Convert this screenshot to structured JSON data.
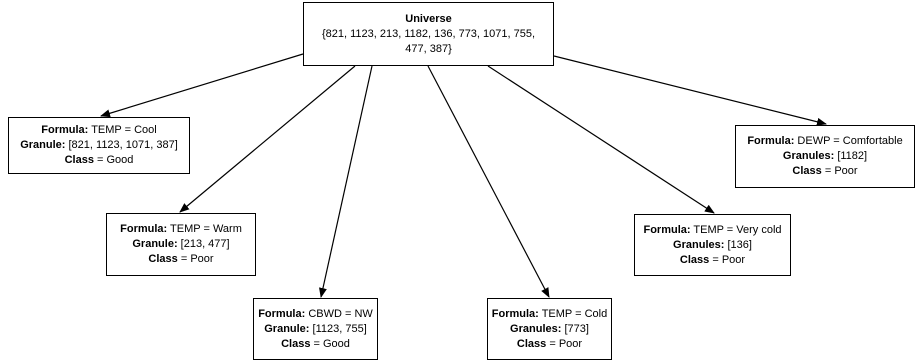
{
  "root": {
    "title": "Universe",
    "set_line1": "{821, 1123, 213, 1182, 136, 773, 1071, 755,",
    "set_line2": "477, 387}"
  },
  "nodes": [
    {
      "formula_key": "Formula:",
      "formula_val": " TEMP = Cool",
      "granule_key": "Granule:",
      "granule_val": " [821, 1123, 1071, 387]",
      "class_key": "Class",
      "class_val": " = Good"
    },
    {
      "formula_key": "Formula:",
      "formula_val": " TEMP = Warm",
      "granule_key": "Granule:",
      "granule_val": " [213, 477]",
      "class_key": "Class",
      "class_val": " = Poor"
    },
    {
      "formula_key": "Formula:",
      "formula_val": " CBWD = NW",
      "granule_key": "Granule:",
      "granule_val": " [1123, 755]",
      "class_key": "Class",
      "class_val": " = Good"
    },
    {
      "formula_key": "Formula:",
      "formula_val": " TEMP = Cold",
      "granule_key": "Granules:",
      "granule_val": " [773]",
      "class_key": "Class",
      "class_val": " = Poor"
    },
    {
      "formula_key": "Formula:",
      "formula_val": " TEMP = Very cold",
      "granule_key": "Granules:",
      "granule_val": " [136]",
      "class_key": "Class",
      "class_val": " = Poor"
    },
    {
      "formula_key": "Formula:",
      "formula_val": " DEWP = Comfortable",
      "granule_key": "Granules:",
      "granule_val": " [1182]",
      "class_key": "Class",
      "class_val": " = Poor"
    }
  ]
}
